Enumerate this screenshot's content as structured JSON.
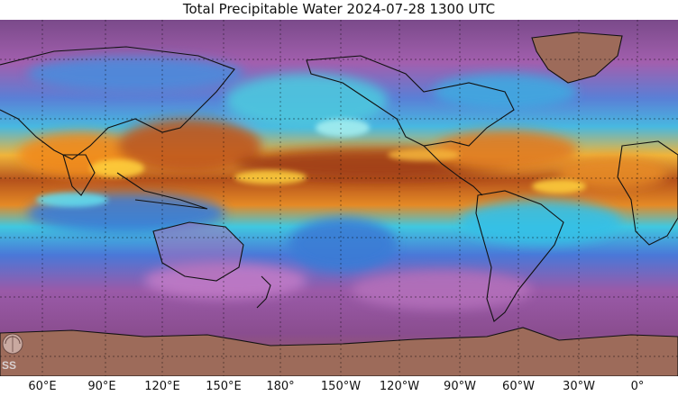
{
  "title": "Total Precipitable Water  2024-07-28 1300 UTC",
  "x_ticks": [
    "60°E",
    "90°E",
    "120°E",
    "150°E",
    "180°",
    "150°W",
    "120°W",
    "90°W",
    "60°W",
    "30°W",
    "0°"
  ],
  "map": {
    "projection": "equirectangular",
    "variable": "total precipitable water",
    "grid": true,
    "colors": {
      "dry": "#8a4d8f",
      "low": "#b070b8",
      "mid_low": "#3a7bd5",
      "mid": "#35d7e6",
      "mid_high": "#ffd23c",
      "high": "#f08a1c",
      "very_high": "#8c2e12",
      "land_cold": "#9d6b5a"
    }
  },
  "logo": {
    "icon": "ssec-logo-icon",
    "text": "SS"
  }
}
